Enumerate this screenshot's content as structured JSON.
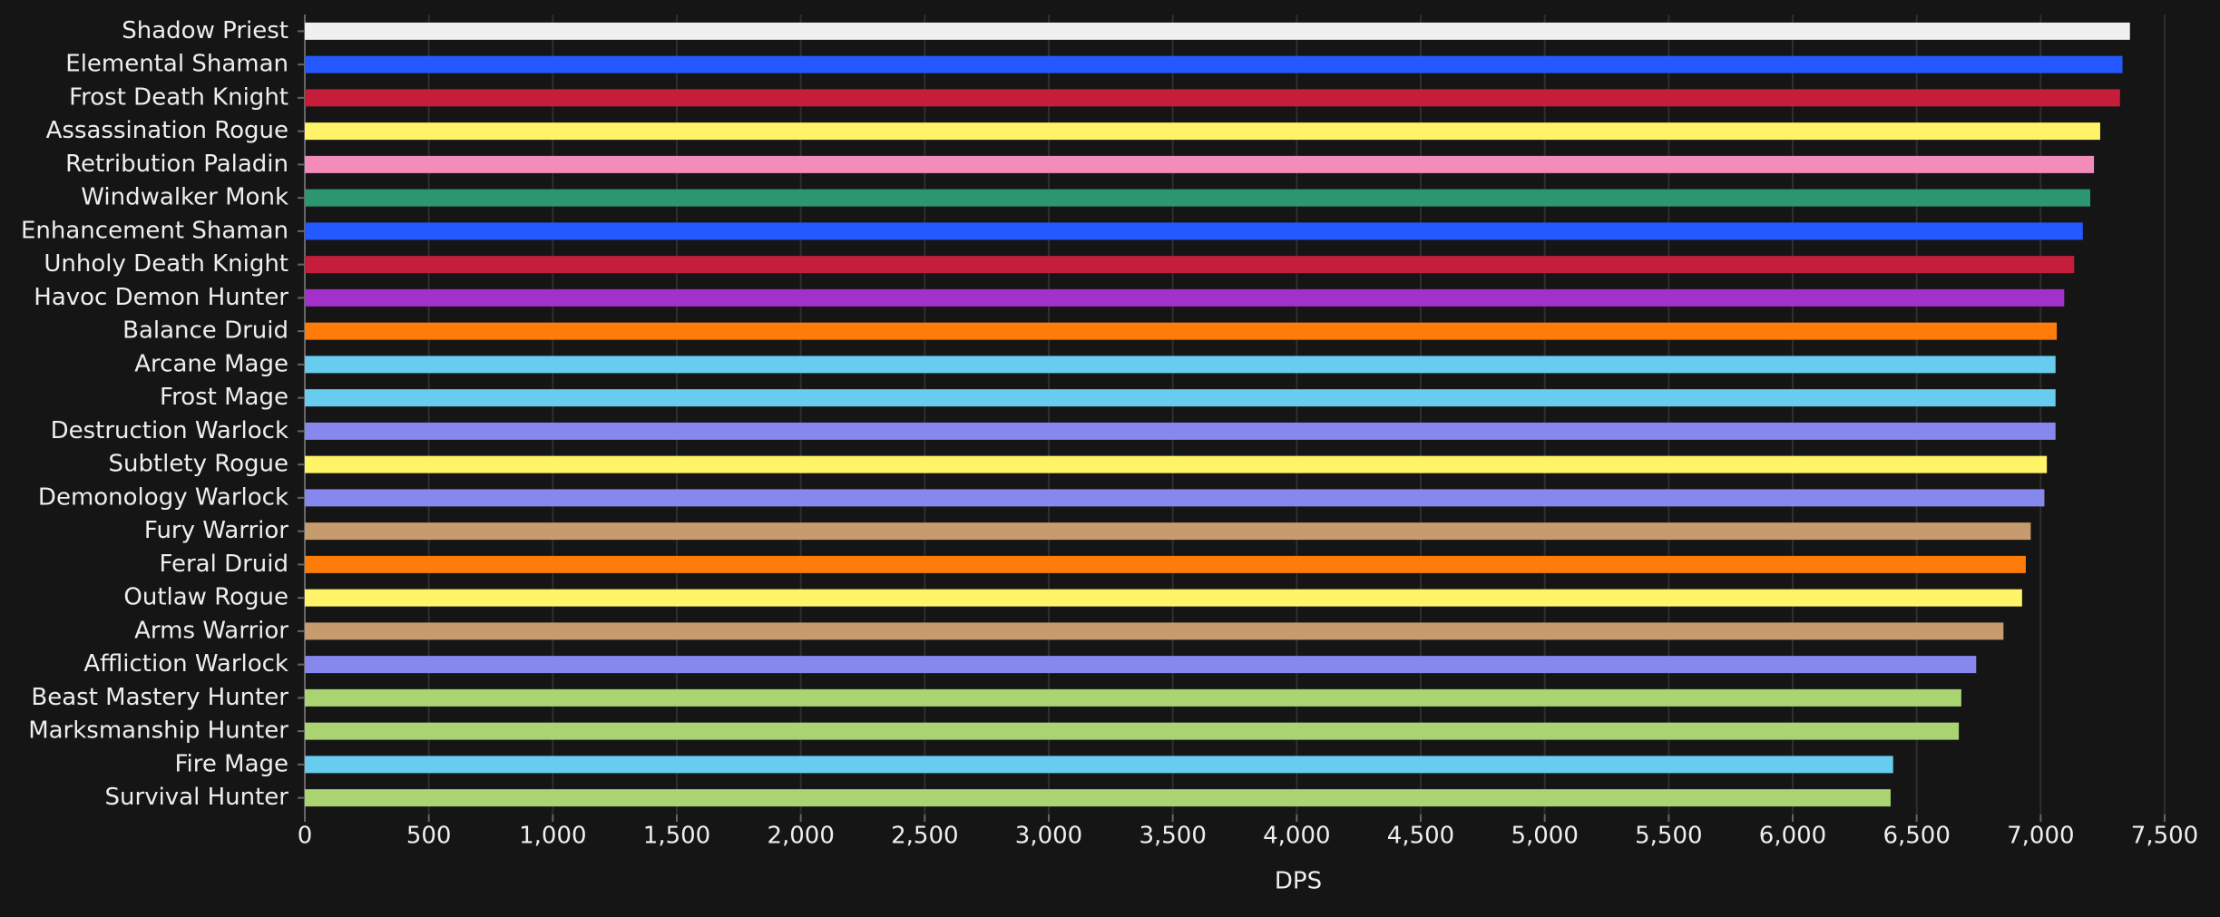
{
  "chart_data": {
    "type": "hbar",
    "x_label": "DPS",
    "categories": [
      "Shadow Priest",
      "Elemental Shaman",
      "Frost Death Knight",
      "Assassination Rogue",
      "Retribution Paladin",
      "Windwalker Monk",
      "Enhancement Shaman",
      "Unholy Death Knight",
      "Havoc Demon Hunter",
      "Balance Druid",
      "Arcane Mage",
      "Frost Mage",
      "Destruction Warlock",
      "Subtlety Rogue",
      "Demonology Warlock",
      "Fury Warrior",
      "Feral Druid",
      "Outlaw Rogue",
      "Arms Warrior",
      "Affliction Warlock",
      "Beast Mastery Hunter",
      "Marksmanship Hunter",
      "Fire Mage",
      "Survival Hunter"
    ],
    "values": [
      7360,
      7330,
      7320,
      7240,
      7215,
      7200,
      7170,
      7135,
      7095,
      7065,
      7060,
      7060,
      7060,
      7025,
      7015,
      6960,
      6940,
      6925,
      6850,
      6740,
      6680,
      6670,
      6405,
      6395
    ],
    "colors": [
      "#f0f0f0",
      "#2459ff",
      "#c41e3a",
      "#fff468",
      "#f48cba",
      "#2b9670",
      "#2459ff",
      "#c41e3a",
      "#a330c9",
      "#ff7c0a",
      "#68ccef",
      "#68ccef",
      "#8788ee",
      "#fff468",
      "#8788ee",
      "#c69b6d",
      "#ff7c0a",
      "#fff468",
      "#c69b6d",
      "#8788ee",
      "#aad372",
      "#aad372",
      "#68ccef",
      "#aad372"
    ],
    "xlim": [
      0,
      7500
    ],
    "xticks": [
      0,
      500,
      {
        "value": 1000,
        "label": "1,000"
      },
      {
        "value": 1500,
        "label": "1,500"
      },
      {
        "value": 2000,
        "label": "2,000"
      },
      {
        "value": 2500,
        "label": "2,500"
      },
      {
        "value": 3000,
        "label": "3,000"
      },
      {
        "value": 3500,
        "label": "3,500"
      },
      {
        "value": 4000,
        "label": "4,000"
      },
      {
        "value": 4500,
        "label": "4,500"
      },
      {
        "value": 5000,
        "label": "5,000"
      },
      {
        "value": 5500,
        "label": "5,500"
      },
      {
        "value": 6000,
        "label": "6,000"
      },
      {
        "value": 6500,
        "label": "6,500"
      },
      {
        "value": 7000,
        "label": "7,000"
      },
      {
        "value": 7500,
        "label": "7,500"
      }
    ],
    "grid": true
  }
}
